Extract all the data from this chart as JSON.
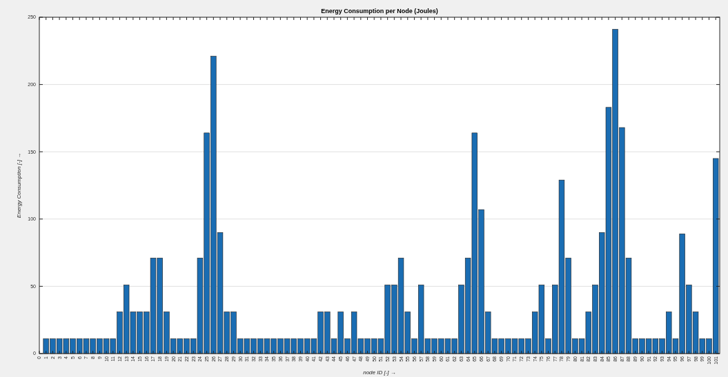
{
  "chart_data": {
    "type": "bar",
    "title": "Energy Consumption per Node (Joules)",
    "xlabel": "node ID [-] →",
    "ylabel": "Energy Consumption [-] →",
    "x": [
      1,
      2,
      3,
      4,
      5,
      6,
      7,
      8,
      9,
      10,
      11,
      12,
      13,
      14,
      15,
      16,
      17,
      18,
      19,
      20,
      21,
      22,
      23,
      24,
      25,
      26,
      27,
      28,
      29,
      30,
      31,
      32,
      33,
      34,
      35,
      36,
      37,
      38,
      39,
      40,
      41,
      42,
      43,
      44,
      45,
      46,
      47,
      48,
      49,
      50,
      51,
      52,
      53,
      54,
      55,
      56,
      57,
      58,
      59,
      60,
      61,
      62,
      63,
      64,
      65,
      66,
      67,
      68,
      69,
      70,
      71,
      72,
      73,
      74,
      75,
      76,
      77,
      78,
      79,
      80,
      81,
      82,
      83,
      84,
      85,
      86,
      87,
      88,
      89,
      90,
      91,
      92,
      93,
      94,
      95,
      96,
      97,
      98,
      99,
      100,
      101
    ],
    "values": [
      11,
      11,
      11,
      11,
      11,
      11,
      11,
      11,
      11,
      11,
      11,
      31,
      51,
      31,
      31,
      31,
      71,
      71,
      31,
      11,
      11,
      11,
      11,
      71,
      164,
      221,
      90,
      31,
      31,
      11,
      11,
      11,
      11,
      11,
      11,
      11,
      11,
      11,
      11,
      11,
      11,
      31,
      31,
      11,
      31,
      11,
      31,
      11,
      11,
      11,
      11,
      51,
      51,
      71,
      31,
      11,
      51,
      11,
      11,
      11,
      11,
      11,
      51,
      71,
      164,
      107,
      31,
      11,
      11,
      11,
      11,
      11,
      11,
      31,
      51,
      11,
      51,
      129,
      71,
      11,
      11,
      31,
      51,
      90,
      183,
      241,
      168,
      71,
      11,
      11,
      11,
      11,
      11,
      31,
      11,
      89,
      51,
      31,
      11,
      11,
      145
    ],
    "color": "#1a6db3",
    "xlim": [
      0,
      101.6
    ],
    "xticks": [
      0,
      1,
      2,
      3,
      4,
      5,
      6,
      7,
      8,
      9,
      10,
      11,
      12,
      13,
      14,
      15,
      16,
      17,
      18,
      19,
      20,
      21,
      22,
      23,
      24,
      25,
      26,
      27,
      28,
      29,
      30,
      31,
      32,
      33,
      34,
      35,
      36,
      37,
      38,
      39,
      40,
      41,
      42,
      43,
      44,
      45,
      46,
      47,
      48,
      49,
      50,
      51,
      52,
      53,
      54,
      55,
      56,
      57,
      58,
      59,
      60,
      61,
      62,
      63,
      64,
      65,
      66,
      67,
      68,
      69,
      70,
      71,
      72,
      73,
      74,
      75,
      76,
      77,
      78,
      79,
      80,
      81,
      82,
      83,
      84,
      85,
      86,
      87,
      88,
      89,
      90,
      91,
      92,
      93,
      94,
      95,
      96,
      97,
      98,
      99,
      100,
      101
    ],
    "ylim": [
      0,
      250
    ],
    "yticks": [
      0,
      50,
      100,
      150,
      200,
      250
    ],
    "grid": "y"
  }
}
